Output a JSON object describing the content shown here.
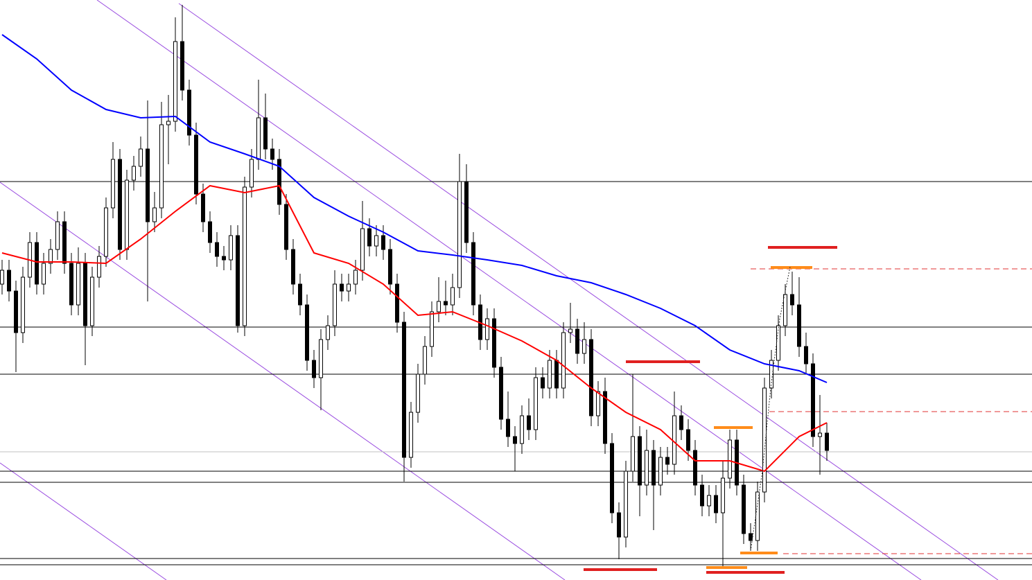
{
  "chart_data": {
    "type": "candlestick",
    "ylim": [
      0,
      837
    ],
    "up_color": "#ffffff",
    "down_color": "#000000",
    "wick_color": "#000000",
    "open": [
      427,
      447,
      417,
      357,
      437,
      487,
      427,
      457,
      477,
      517,
      457,
      397,
      457,
      367,
      437,
      467,
      537,
      607,
      477,
      577,
      597,
      622,
      517,
      537,
      657,
      662,
      777,
      707,
      642,
      557,
      517,
      487,
      467,
      462,
      497,
      367,
      567,
      607,
      667,
      622,
      607,
      542,
      477,
      427,
      397,
      317,
      292,
      347,
      367,
      427,
      417,
      427,
      447,
      507,
      482,
      497,
      477,
      427,
      372,
      177,
      242,
      297,
      337,
      387,
      402,
      397,
      422,
      575,
      487,
      397,
      347,
      377,
      307,
      232,
      207,
      197,
      237,
      217,
      292,
      277,
      317,
      277,
      357,
      362,
      327,
      347,
      237,
      272,
      197,
      97,
      62,
      157,
      207,
      137,
      187,
      137,
      177,
      167,
      237,
      217,
      187,
      137,
      107,
      122,
      97,
      147,
      202,
      137,
      67,
      57,
      127,
      277,
      317,
      367,
      412,
      397,
      337,
      312,
      207,
      212
    ],
    "high": [
      462,
      462,
      432,
      452,
      502,
      502,
      472,
      492,
      532,
      532,
      472,
      480,
      472,
      452,
      482,
      552,
      632,
      622,
      592,
      612,
      640,
      692,
      560,
      690,
      700,
      812,
      830,
      722,
      660,
      572,
      532,
      502,
      482,
      512,
      512,
      582,
      622,
      722,
      702,
      637,
      622,
      557,
      492,
      442,
      412,
      332,
      362,
      382,
      447,
      442,
      442,
      462,
      547,
      522,
      512,
      512,
      492,
      442,
      387,
      257,
      312,
      352,
      402,
      437,
      432,
      442,
      615,
      600,
      502,
      412,
      392,
      392,
      322,
      272,
      222,
      252,
      262,
      307,
      307,
      332,
      332,
      372,
      400,
      377,
      372,
      362,
      287,
      292,
      212,
      112,
      172,
      297,
      222,
      217,
      202,
      192,
      192,
      272,
      252,
      232,
      202,
      152,
      137,
      137,
      172,
      217,
      217,
      152,
      82,
      142,
      292,
      332,
      382,
      427,
      445,
      437,
      357,
      327,
      267,
      227
    ],
    "low": [
      412,
      402,
      300,
      342,
      422,
      412,
      412,
      442,
      462,
      442,
      382,
      382,
      310,
      352,
      422,
      452,
      522,
      462,
      462,
      562,
      582,
      402,
      502,
      522,
      600,
      647,
      692,
      627,
      542,
      502,
      472,
      452,
      447,
      447,
      357,
      352,
      552,
      592,
      607,
      592,
      527,
      462,
      412,
      382,
      302,
      277,
      245,
      332,
      352,
      402,
      402,
      412,
      432,
      467,
      467,
      462,
      412,
      357,
      142,
      162,
      227,
      282,
      322,
      372,
      382,
      382,
      407,
      472,
      382,
      332,
      332,
      292,
      217,
      192,
      157,
      182,
      202,
      202,
      262,
      262,
      262,
      262,
      342,
      312,
      312,
      222,
      222,
      182,
      82,
      30,
      47,
      142,
      92,
      122,
      72,
      122,
      152,
      152,
      202,
      172,
      122,
      92,
      92,
      82,
      17,
      132,
      122,
      52,
      42,
      42,
      112,
      262,
      302,
      352,
      382,
      322,
      297,
      192,
      152,
      172
    ],
    "close": [
      447,
      417,
      357,
      437,
      487,
      427,
      457,
      477,
      517,
      457,
      397,
      457,
      367,
      437,
      467,
      537,
      607,
      477,
      577,
      597,
      622,
      517,
      537,
      657,
      662,
      777,
      707,
      642,
      557,
      517,
      487,
      467,
      462,
      497,
      367,
      567,
      607,
      667,
      622,
      607,
      542,
      477,
      427,
      397,
      317,
      292,
      347,
      367,
      427,
      417,
      427,
      447,
      507,
      482,
      497,
      477,
      427,
      372,
      177,
      242,
      297,
      337,
      387,
      402,
      397,
      422,
      575,
      487,
      397,
      347,
      377,
      307,
      232,
      207,
      197,
      237,
      217,
      292,
      277,
      317,
      277,
      357,
      362,
      327,
      347,
      237,
      272,
      197,
      97,
      62,
      157,
      207,
      137,
      187,
      137,
      177,
      167,
      237,
      217,
      187,
      137,
      107,
      122,
      97,
      147,
      202,
      137,
      67,
      57,
      127,
      277,
      317,
      367,
      412,
      397,
      337,
      312,
      207,
      212,
      187
    ],
    "series": [
      {
        "color": "#0000ff",
        "x": [
          0,
          5,
          10,
          15,
          20,
          25,
          30,
          35,
          40,
          45,
          50,
          55,
          60,
          65,
          70,
          75,
          80,
          85,
          90,
          95,
          100,
          105,
          110,
          115,
          119
        ],
        "values": [
          787,
          752,
          707,
          679,
          667,
          669,
          632,
          615,
          597,
          552,
          525,
          502,
          475,
          469,
          462,
          454,
          439,
          429,
          412,
          392,
          367,
          332,
          312,
          302,
          285
        ]
      },
      {
        "color": "#ff0000",
        "x": [
          0,
          5,
          10,
          15,
          20,
          25,
          30,
          35,
          40,
          45,
          50,
          55,
          60,
          65,
          70,
          75,
          80,
          85,
          90,
          95,
          100,
          105,
          110,
          115,
          119
        ],
        "values": [
          472,
          459,
          459,
          457,
          492,
          532,
          569,
          559,
          569,
          472,
          457,
          427,
          382,
          387,
          367,
          345,
          317,
          277,
          242,
          217,
          172,
          172,
          157,
          207,
          227
        ]
      }
    ],
    "levels": [
      575,
      365,
      297,
      157,
      141,
      31,
      22
    ],
    "level_color": "#000000",
    "light_levels": [
      185
    ],
    "light_level_color": "#c0c0c0",
    "dashed_levels": [
      449,
      243,
      38
    ],
    "dashed_color": "#e03030"
  }
}
